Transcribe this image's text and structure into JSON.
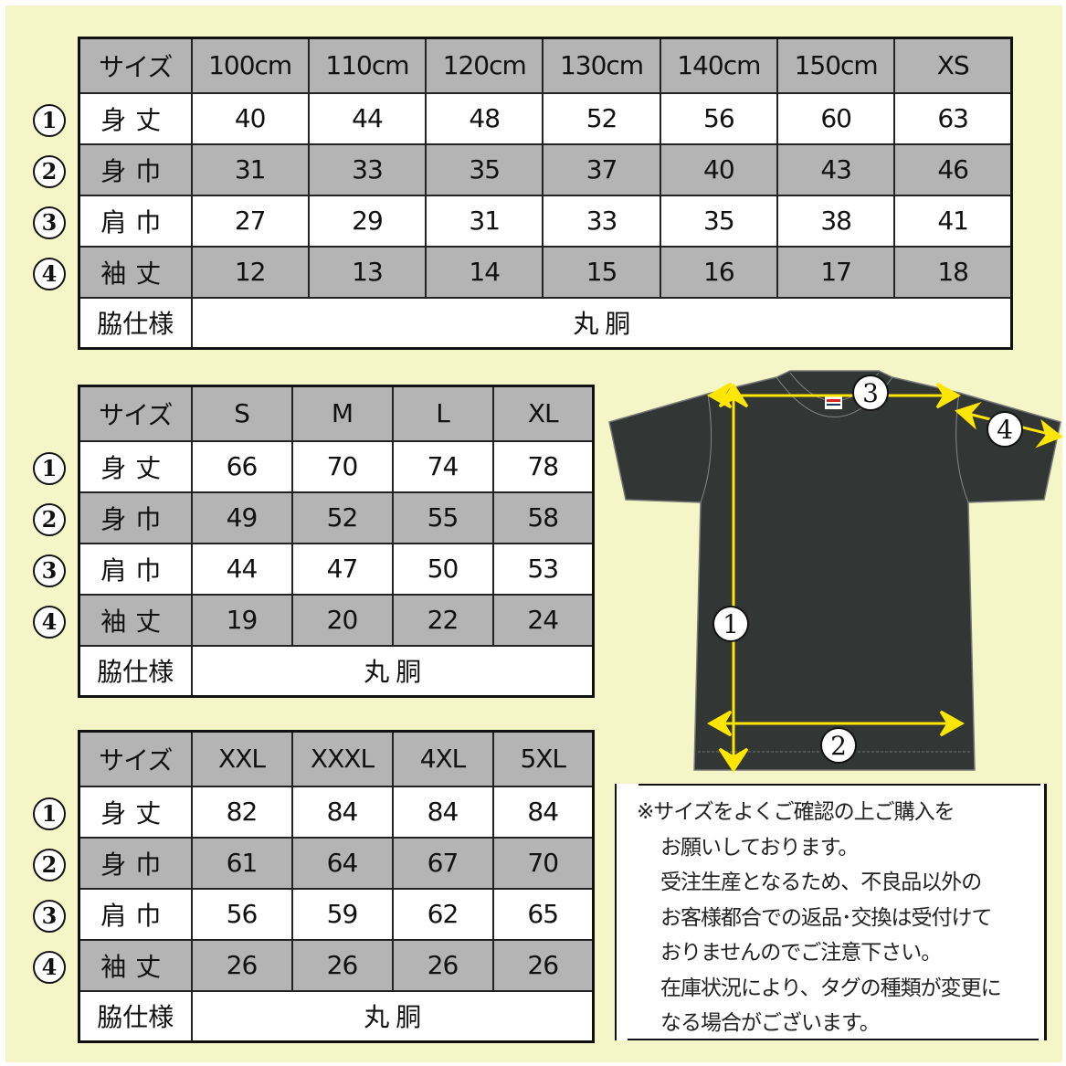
{
  "colors": {
    "background": "#f4f6c8",
    "header_row": "#b4b4b4",
    "shirt": "#323634",
    "arrow": "#ffe600"
  },
  "tables": [
    {
      "header": [
        "サイズ",
        "100cm",
        "110cm",
        "120cm",
        "130cm",
        "140cm",
        "150cm",
        "XS"
      ],
      "rows": [
        {
          "num": "1",
          "label": "身丈",
          "values": [
            "40",
            "44",
            "48",
            "52",
            "56",
            "60",
            "63"
          ]
        },
        {
          "num": "2",
          "label": "身巾",
          "values": [
            "31",
            "33",
            "35",
            "37",
            "40",
            "43",
            "46"
          ]
        },
        {
          "num": "3",
          "label": "肩巾",
          "values": [
            "27",
            "29",
            "31",
            "33",
            "35",
            "38",
            "41"
          ]
        },
        {
          "num": "4",
          "label": "袖丈",
          "values": [
            "12",
            "13",
            "14",
            "15",
            "16",
            "17",
            "18"
          ]
        }
      ],
      "footer": {
        "label": "脇仕様",
        "value": "丸 胴"
      }
    },
    {
      "header": [
        "サイズ",
        "S",
        "M",
        "L",
        "XL"
      ],
      "rows": [
        {
          "num": "1",
          "label": "身丈",
          "values": [
            "66",
            "70",
            "74",
            "78"
          ]
        },
        {
          "num": "2",
          "label": "身巾",
          "values": [
            "49",
            "52",
            "55",
            "58"
          ]
        },
        {
          "num": "3",
          "label": "肩巾",
          "values": [
            "44",
            "47",
            "50",
            "53"
          ]
        },
        {
          "num": "4",
          "label": "袖丈",
          "values": [
            "19",
            "20",
            "22",
            "24"
          ]
        }
      ],
      "footer": {
        "label": "脇仕様",
        "value": "丸 胴"
      }
    },
    {
      "header": [
        "サイズ",
        "XXL",
        "XXXL",
        "4XL",
        "5XL"
      ],
      "rows": [
        {
          "num": "1",
          "label": "身丈",
          "values": [
            "82",
            "84",
            "84",
            "84"
          ]
        },
        {
          "num": "2",
          "label": "身巾",
          "values": [
            "61",
            "64",
            "67",
            "70"
          ]
        },
        {
          "num": "3",
          "label": "肩巾",
          "values": [
            "56",
            "59",
            "62",
            "65"
          ]
        },
        {
          "num": "4",
          "label": "袖丈",
          "values": [
            "26",
            "26",
            "26",
            "26"
          ]
        }
      ],
      "footer": {
        "label": "脇仕様",
        "value": "丸 胴"
      }
    }
  ],
  "diagram": {
    "markers": [
      "1",
      "2",
      "3",
      "4"
    ],
    "icon": "t-shirt"
  },
  "note": {
    "lines": [
      "※サイズをよくご確認の上ご購入を",
      "お願いしております。",
      "受注生産となるため、不良品以外の",
      "お客様都合での返品･交換は受付けて",
      "おりませんのでご注意下さい。",
      "在庫状況により、タグの種類が変更に",
      "なる場合がございます。"
    ]
  }
}
